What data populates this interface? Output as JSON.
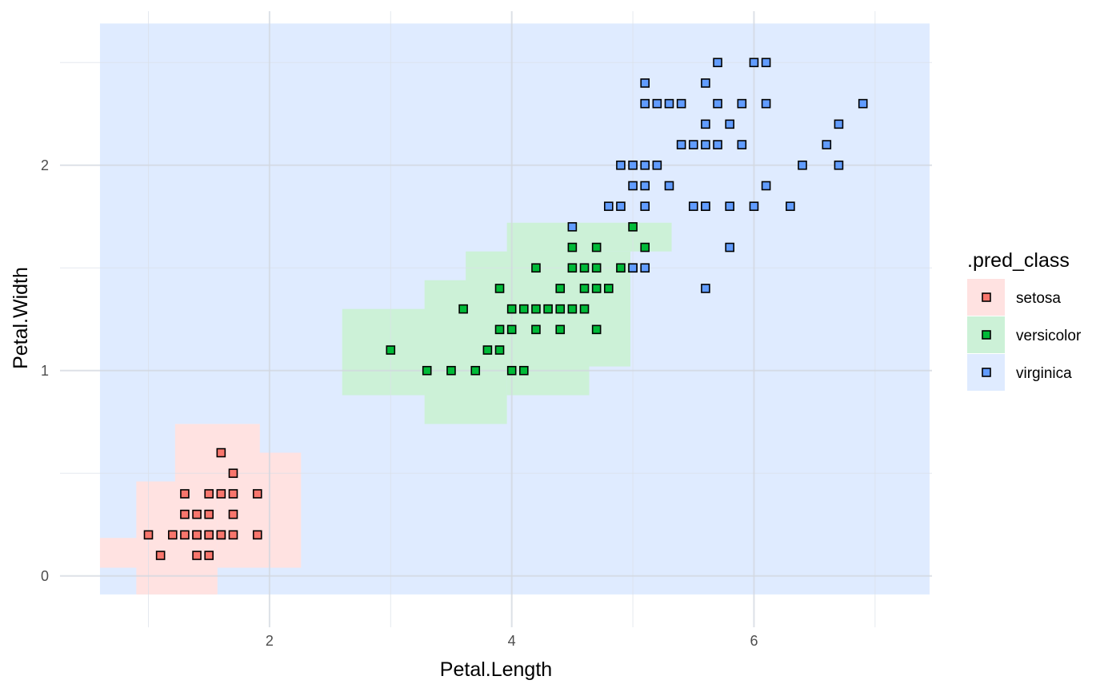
{
  "chart_data": {
    "type": "scatter",
    "xlabel": "Petal.Length",
    "ylabel": "Petal.Width",
    "xlim": [
      0.27,
      7.47
    ],
    "ylim": [
      -0.25,
      2.75
    ],
    "x_major_ticks": [
      2,
      4,
      6
    ],
    "y_major_ticks": [
      0,
      1,
      2
    ],
    "x_minor_grid": [
      1,
      3,
      5,
      7
    ],
    "y_minor_grid": [
      0.5,
      1.5,
      2.5
    ],
    "grid": true,
    "legend": {
      "title": ".pred_class",
      "position": "right",
      "entries": [
        "setosa",
        "versicolor",
        "virginica"
      ]
    },
    "colors": {
      "setosa": "#F8766D",
      "versicolor": "#00BA38",
      "virginica": "#619CFF",
      "setosa_region": "#FFE2E1",
      "versicolor_region": "#CCF1D7",
      "virginica_region": "#DFEBFF"
    },
    "regions": [
      {
        "class": "virginica",
        "x0": 0.6,
        "x1": 7.45,
        "y0": -0.09,
        "y1": 2.69
      },
      {
        "class": "setosa",
        "x0": 0.6,
        "x1": 1.5,
        "y0": 0.04,
        "y1": 0.185
      },
      {
        "class": "setosa",
        "x0": 0.9,
        "x1": 1.57,
        "y0": -0.09,
        "y1": 0.46
      },
      {
        "class": "setosa",
        "x0": 1.57,
        "x1": 2.26,
        "y0": 0.04,
        "y1": 0.6
      },
      {
        "class": "setosa",
        "x0": 1.22,
        "x1": 1.92,
        "y0": 0.46,
        "y1": 0.74
      },
      {
        "class": "versicolor",
        "x0": 2.6,
        "x1": 3.3,
        "y0": 0.88,
        "y1": 1.3
      },
      {
        "class": "versicolor",
        "x0": 3.28,
        "x1": 3.96,
        "y0": 0.74,
        "y1": 1.44
      },
      {
        "class": "versicolor",
        "x0": 3.96,
        "x1": 4.64,
        "y0": 0.88,
        "y1": 1.58
      },
      {
        "class": "versicolor",
        "x0": 3.62,
        "x1": 4.98,
        "y0": 1.02,
        "y1": 1.58
      },
      {
        "class": "versicolor",
        "x0": 3.96,
        "x1": 5.32,
        "y0": 1.58,
        "y1": 1.72
      }
    ],
    "series": [
      {
        "name": "setosa",
        "x": [
          1.0,
          1.1,
          1.2,
          1.3,
          1.3,
          1.3,
          1.4,
          1.4,
          1.4,
          1.4,
          1.5,
          1.5,
          1.5,
          1.5,
          1.5,
          1.6,
          1.6,
          1.6,
          1.6,
          1.7,
          1.7,
          1.7,
          1.7,
          1.9,
          1.9
        ],
        "y": [
          0.2,
          0.1,
          0.2,
          0.2,
          0.3,
          0.4,
          0.1,
          0.2,
          0.3,
          0.2,
          0.1,
          0.2,
          0.3,
          0.4,
          0.2,
          0.2,
          0.4,
          0.6,
          0.2,
          0.2,
          0.3,
          0.4,
          0.5,
          0.2,
          0.4
        ]
      },
      {
        "name": "versicolor",
        "x": [
          3.0,
          3.3,
          3.5,
          3.6,
          3.7,
          3.8,
          3.9,
          3.9,
          3.9,
          4.0,
          4.0,
          4.0,
          4.1,
          4.1,
          4.2,
          4.2,
          4.2,
          4.3,
          4.4,
          4.4,
          4.4,
          4.5,
          4.5,
          4.5,
          4.6,
          4.6,
          4.6,
          4.7,
          4.7,
          4.7,
          4.7,
          4.8,
          4.9,
          5.0,
          5.1
        ],
        "y": [
          1.1,
          1.0,
          1.0,
          1.3,
          1.0,
          1.1,
          1.1,
          1.2,
          1.4,
          1.0,
          1.2,
          1.3,
          1.0,
          1.3,
          1.2,
          1.3,
          1.5,
          1.3,
          1.2,
          1.3,
          1.4,
          1.3,
          1.5,
          1.6,
          1.3,
          1.4,
          1.5,
          1.2,
          1.4,
          1.5,
          1.6,
          1.4,
          1.5,
          1.7,
          1.6
        ]
      },
      {
        "name": "virginica",
        "x": [
          4.5,
          4.8,
          4.9,
          4.9,
          5.0,
          5.0,
          5.0,
          5.0,
          5.1,
          5.1,
          5.1,
          5.1,
          5.1,
          5.1,
          5.2,
          5.2,
          5.3,
          5.3,
          5.4,
          5.4,
          5.5,
          5.5,
          5.6,
          5.6,
          5.6,
          5.6,
          5.6,
          5.6,
          5.7,
          5.7,
          5.7,
          5.8,
          5.8,
          5.8,
          5.9,
          5.9,
          6.0,
          6.0,
          6.1,
          6.1,
          6.1,
          6.3,
          6.4,
          6.6,
          6.7,
          6.7,
          6.9
        ],
        "y": [
          1.7,
          1.8,
          1.8,
          2.0,
          1.5,
          1.9,
          2.0,
          1.5,
          1.5,
          1.8,
          1.9,
          2.0,
          2.3,
          2.4,
          2.0,
          2.3,
          1.9,
          2.3,
          2.1,
          2.3,
          1.8,
          2.1,
          1.4,
          1.8,
          2.1,
          2.2,
          2.4,
          1.8,
          2.1,
          2.3,
          2.5,
          1.6,
          1.8,
          2.2,
          2.1,
          2.3,
          1.8,
          2.5,
          1.9,
          2.3,
          2.5,
          1.8,
          2.0,
          2.1,
          2.0,
          2.2,
          2.3
        ]
      }
    ]
  }
}
